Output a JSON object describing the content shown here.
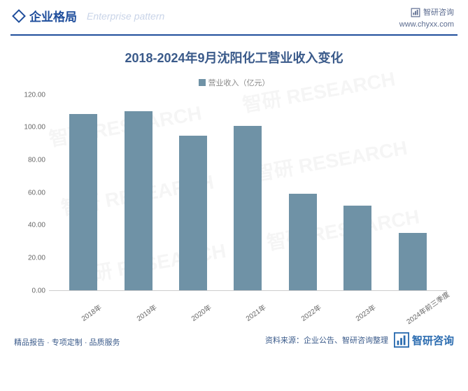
{
  "header": {
    "title_cn": "企业格局",
    "title_en": "Enterprise pattern",
    "brand_name": "智研咨询",
    "brand_url": "www.chyxx.com",
    "accent_color": "#1f4e9c",
    "en_color": "#c9d4e8",
    "brand_color": "#5b6b8f"
  },
  "chart": {
    "type": "bar",
    "title": "2018-2024年9月沈阳化工营业收入变化",
    "title_color": "#3a5a8a",
    "legend_label": "营业收入（亿元）",
    "legend_color": "#8a8a8a",
    "categories": [
      "2018年",
      "2019年",
      "2020年",
      "2021年",
      "2022年",
      "2023年",
      "2024年前三季度"
    ],
    "values": [
      108,
      110,
      95,
      101,
      59,
      52,
      35
    ],
    "bar_color": "#6f92a6",
    "ylim": [
      0,
      120
    ],
    "ytick_step": 20,
    "ytick_format": "fixed2",
    "yticks": [
      "0.00",
      "20.00",
      "40.00",
      "60.00",
      "80.00",
      "100.00",
      "120.00"
    ],
    "axis_text_color": "#666666",
    "background_color": "#ffffff"
  },
  "footer": {
    "left_text": "精品报告 · 专项定制 · 品质服务",
    "source_label": "资料来源：",
    "source_value": "企业公告、智研咨询整理",
    "brand_name": "智研咨询",
    "accent_color": "#3a5a8a",
    "brand_logo_color": "#2b6cb0"
  },
  "watermark": {
    "text": "智研 RESEARCH"
  }
}
